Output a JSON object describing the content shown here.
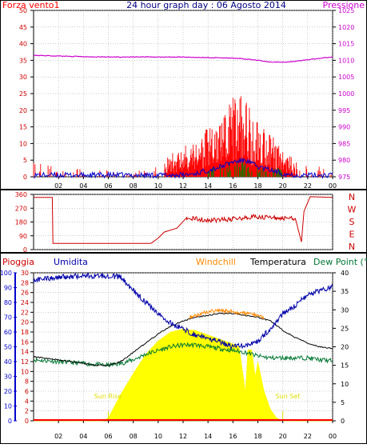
{
  "header": {
    "title": "24 hour graph day : 06 Agosto 2014",
    "left_label": "Forza vento1",
    "right_label": "Pressione"
  },
  "middle": {
    "right_labels": [
      "N",
      "W",
      "S",
      "E",
      "N"
    ]
  },
  "bottom": {
    "labels": {
      "rain": "Pioggia",
      "humidity": "Umidita",
      "windchill": "Windchill",
      "temperature": "Temperatura",
      "dewpoint": "Dew Point (°C"
    },
    "sunrise": "Sun Rise",
    "sunset": "Sun Set"
  },
  "colors": {
    "wind": "#ff0000",
    "gust_blue": "#0000cc",
    "gust_green": "#008000",
    "pressure": "#cc00cc",
    "direction": "#cc0000",
    "humidity": "#0000aa",
    "windchill": "#ff8800",
    "temperature": "#000000",
    "dewpoint": "#007733",
    "solar": "#ffff00",
    "rain_axis": "#cc0000",
    "hum_axis": "#0000cc",
    "grid": "#999999",
    "title": "#000080"
  },
  "chart_data": [
    {
      "type": "bar",
      "name_id": "wind-pressure",
      "x_ticks": [
        "02",
        "04",
        "06",
        "08",
        "10",
        "12",
        "14",
        "16",
        "18",
        "20",
        "22",
        "00"
      ],
      "left_ticks": [
        "0",
        "5",
        "10",
        "15",
        "20",
        "25",
        "30",
        "35",
        "40",
        "45",
        "50"
      ],
      "right_ticks": [
        "975",
        "980",
        "985",
        "990",
        "995",
        "1000",
        "1005",
        "1010",
        "1015",
        "1020",
        "1025"
      ],
      "xlim": [
        0,
        24
      ],
      "ylim_left": [
        0,
        50
      ],
      "ylim_right": [
        975,
        1025
      ],
      "pressure": {
        "x": [
          0,
          2,
          4,
          6,
          8,
          10,
          12,
          14,
          16,
          18,
          19,
          20,
          21,
          22,
          23,
          24
        ],
        "y": [
          1011.5,
          1011.3,
          1011.1,
          1011.0,
          1011.0,
          1011.0,
          1011.0,
          1010.8,
          1010.7,
          1010.0,
          1009.5,
          1009.4,
          1009.7,
          1010.2,
          1010.6,
          1011.0
        ]
      },
      "wind_envelope": {
        "x": [
          0,
          1,
          2,
          3,
          4,
          5,
          6,
          7,
          8,
          9,
          10,
          11,
          12,
          13,
          14,
          15,
          16,
          17,
          18,
          19,
          20,
          21,
          22,
          23,
          24
        ],
        "y": [
          5,
          4,
          2,
          3,
          3,
          2,
          2,
          1,
          1,
          3,
          4,
          7,
          9,
          13,
          15,
          17,
          26,
          25,
          19,
          14,
          8,
          5,
          4,
          3,
          1
        ]
      }
    },
    {
      "type": "line",
      "name_id": "wind-direction",
      "x_ticks": [
        "02",
        "04",
        "06",
        "08",
        "10",
        "12",
        "14",
        "16",
        "18",
        "20",
        "22",
        "00"
      ],
      "y_ticks": [
        "0",
        "90",
        "180",
        "270",
        "360"
      ],
      "xlim": [
        0,
        24
      ],
      "ylim": [
        0,
        360
      ],
      "direction": {
        "x": [
          0,
          1.5,
          1.55,
          9.4,
          9.5,
          10.0,
          10.5,
          11.5,
          12.3,
          14,
          16,
          18,
          19.5,
          21,
          21.5,
          21.7,
          22.2,
          24
        ],
        "y": [
          340,
          340,
          40,
          40,
          45,
          75,
          115,
          140,
          210,
          190,
          200,
          215,
          205,
          205,
          50,
          250,
          345,
          340
        ]
      }
    },
    {
      "type": "line",
      "name_id": "weather",
      "x_ticks": [
        "02",
        "04",
        "06",
        "08",
        "10",
        "12",
        "14",
        "16",
        "18",
        "20",
        "22",
        "00"
      ],
      "humidity_ticks": [
        "0",
        "10",
        "20",
        "30",
        "40",
        "50",
        "60",
        "70",
        "80",
        "90",
        "100"
      ],
      "rain_ticks": [
        "0",
        "2",
        "4",
        "6",
        "8",
        "10",
        "12",
        "14",
        "16",
        "18",
        "20",
        "22",
        "24",
        "26",
        "28",
        "30"
      ],
      "temp_ticks": [
        "0",
        "5",
        "10",
        "15",
        "20",
        "25",
        "30",
        "35",
        "40"
      ],
      "xlim": [
        0,
        24
      ],
      "ylim_humidity": [
        0,
        100
      ],
      "ylim_rain": [
        0,
        30
      ],
      "ylim_temp": [
        0,
        40
      ],
      "humidity": {
        "x": [
          0,
          2,
          4,
          6,
          7,
          8,
          9,
          10,
          11,
          12,
          13,
          14,
          15,
          16,
          17,
          18,
          19,
          20,
          21,
          22,
          23,
          24
        ],
        "y": [
          95,
          97,
          98,
          98,
          97,
          88,
          80,
          72,
          66,
          62,
          58,
          56,
          53,
          50,
          51,
          54,
          62,
          72,
          78,
          85,
          88,
          91
        ]
      },
      "temperature": {
        "x": [
          0,
          2,
          4,
          5,
          6,
          7,
          8,
          9,
          10,
          11,
          12,
          13,
          14,
          15,
          16,
          17,
          18,
          19,
          20,
          21,
          22,
          23,
          24
        ],
        "y": [
          17.3,
          16.5,
          15.5,
          15.0,
          15.0,
          16.0,
          18.5,
          21.0,
          23.5,
          25.5,
          27.0,
          28.0,
          28.5,
          29.0,
          29.0,
          28.5,
          28.0,
          27.0,
          24.5,
          22.5,
          21.0,
          20.0,
          19.5
        ]
      },
      "windchill": {
        "x": [
          12.5,
          13,
          14,
          15,
          16,
          17,
          18,
          18.5
        ],
        "y": [
          28.0,
          28.5,
          29.5,
          29.8,
          29.5,
          29.0,
          28.5,
          28.0
        ]
      },
      "dewpoint": {
        "x": [
          0,
          2,
          4,
          6,
          7,
          8,
          9,
          10,
          11,
          12,
          13,
          14,
          15,
          16,
          17,
          18,
          19,
          20,
          21,
          22,
          23,
          24
        ],
        "y": [
          16.5,
          16.0,
          15.5,
          15.0,
          15.5,
          16.5,
          18.0,
          19.0,
          20.0,
          20.5,
          20.5,
          20.0,
          19.5,
          19.0,
          18.5,
          17.5,
          17.0,
          17.0,
          17.0,
          17.0,
          16.5,
          16.2
        ]
      },
      "solar": {
        "x": [
          0,
          5.5,
          6,
          7,
          8,
          9,
          10,
          11,
          12,
          13,
          14,
          15,
          16,
          16.5,
          17,
          17.2,
          17.5,
          17.8,
          18,
          18.5,
          19,
          19.5,
          20,
          24
        ],
        "y": [
          0,
          0,
          2,
          18,
          32,
          45,
          54,
          60,
          62,
          61,
          58,
          55,
          52,
          50,
          20,
          48,
          48,
          30,
          40,
          20,
          8,
          2,
          0,
          0
        ]
      }
    }
  ]
}
